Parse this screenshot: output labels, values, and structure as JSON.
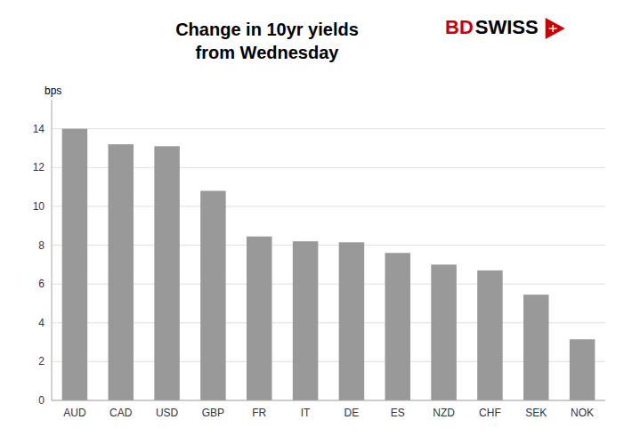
{
  "chart_data": {
    "type": "bar",
    "title": "Change in 10yr yields",
    "subtitle": "from Wednesday",
    "y_label": "bps",
    "categories": [
      "AUD",
      "CAD",
      "USD",
      "GBP",
      "FR",
      "IT",
      "DE",
      "ES",
      "NZD",
      "CHF",
      "SEK",
      "NOK"
    ],
    "values": [
      14.0,
      13.2,
      13.1,
      10.8,
      8.45,
      8.2,
      8.15,
      7.6,
      7.0,
      6.7,
      5.45,
      3.15
    ],
    "color": "#999999",
    "ylim": [
      0,
      15.5
    ],
    "yticks": [
      0,
      2,
      4,
      6,
      8,
      10,
      12,
      14
    ],
    "grid": true,
    "annotations": [
      {
        "text": "BD",
        "color": "#cc0000"
      },
      {
        "text": "SWISS",
        "color": "#000000"
      }
    ]
  }
}
